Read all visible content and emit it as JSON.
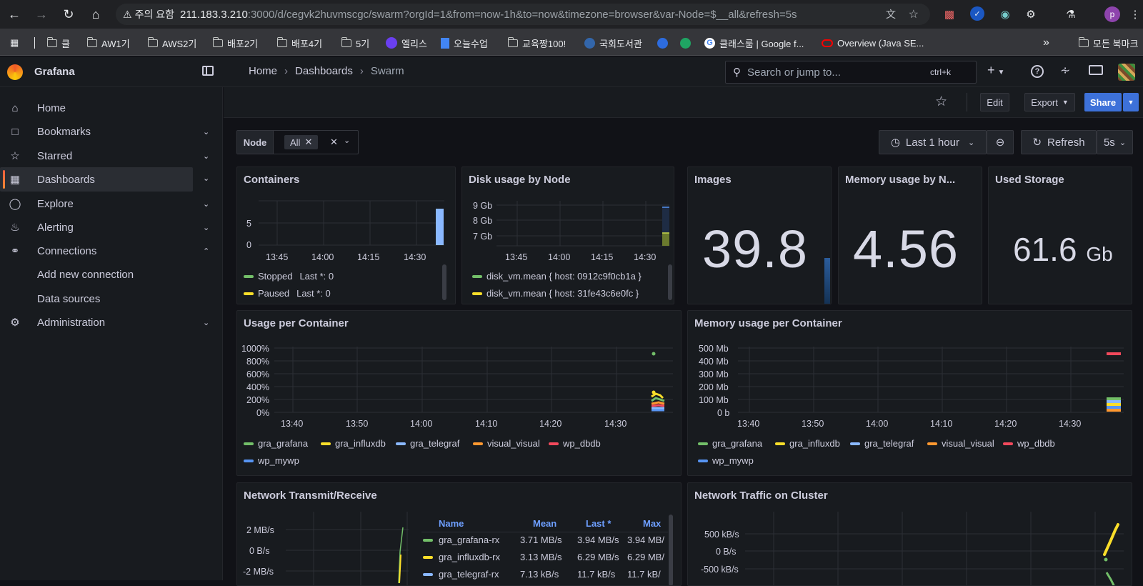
{
  "browser": {
    "warning": "주의 요함",
    "url_host": "211.183.3.210",
    "url_rest": ":3000/d/cegvk2huvmscgc/swarm?orgId=1&from=now-1h&to=now&timezone=browser&var-Node=$__all&refresh=5s",
    "profile_initial": "p",
    "bookmarks": [
      "클",
      "AW1기",
      "AWS2기",
      "배포2기",
      "배포4기",
      "5기",
      "엘리스",
      "오늘수업",
      "교육짱100!",
      "국회도서관",
      "클래스룸 | Google f...",
      "Overview (Java SE..."
    ],
    "more": "»",
    "all_bookmarks": "모든 북마크"
  },
  "app": {
    "name": "Grafana",
    "breadcrumb": [
      "Home",
      "Dashboards",
      "Swarm"
    ],
    "search_placeholder": "Search or jump to...",
    "search_shortcut": "ctrl+k",
    "add": "+"
  },
  "sidebar": {
    "items": [
      {
        "label": "Home",
        "icon": "home-icon"
      },
      {
        "label": "Bookmarks",
        "icon": "bookmark-icon"
      },
      {
        "label": "Starred",
        "icon": "star-icon"
      },
      {
        "label": "Dashboards",
        "icon": "apps-icon"
      },
      {
        "label": "Explore",
        "icon": "compass-icon"
      },
      {
        "label": "Alerting",
        "icon": "bell-icon"
      },
      {
        "label": "Connections",
        "icon": "connections-icon"
      },
      {
        "label": "Add new connection"
      },
      {
        "label": "Data sources"
      },
      {
        "label": "Administration",
        "icon": "cog-icon"
      }
    ]
  },
  "toolbar": {
    "edit": "Edit",
    "export": "Export",
    "share": "Share",
    "time_range": "Last 1 hour",
    "refresh": "Refresh",
    "refresh_interval": "5s"
  },
  "variables": {
    "node_label": "Node",
    "node_value": "All"
  },
  "panels": {
    "containers": {
      "title": "Containers",
      "y_ticks": [
        "5",
        "0"
      ],
      "x_ticks": [
        "13:45",
        "14:00",
        "14:15",
        "14:30"
      ],
      "legend": [
        {
          "name": "Stopped",
          "stat": "Last *: 0",
          "color": "#73bf69"
        },
        {
          "name": "Paused",
          "stat": "Last *: 0",
          "color": "#fade2a"
        }
      ]
    },
    "disk": {
      "title": "Disk usage by Node",
      "y_ticks": [
        "9 Gb",
        "8 Gb",
        "7 Gb"
      ],
      "x_ticks": [
        "13:45",
        "14:00",
        "14:15",
        "14:30"
      ],
      "legend": [
        {
          "name": "disk_vm.mean { host: 0912c9f0cb1a }",
          "color": "#73bf69"
        },
        {
          "name": "disk_vm.mean { host: 31fe43c6e0fc }",
          "color": "#fade2a"
        }
      ]
    },
    "images": {
      "title": "Images",
      "value": "39.8"
    },
    "memory_node": {
      "title": "Memory usage by N...",
      "value": "4.56"
    },
    "storage": {
      "title": "Used Storage",
      "value": "61.6",
      "unit": "Gb"
    },
    "usage_container": {
      "title": "Usage per Container",
      "y_ticks": [
        "1000%",
        "800%",
        "600%",
        "400%",
        "200%",
        "0%"
      ],
      "x_ticks": [
        "13:40",
        "13:50",
        "14:00",
        "14:10",
        "14:20",
        "14:30"
      ],
      "legend": [
        {
          "name": "gra_grafana",
          "color": "#73bf69"
        },
        {
          "name": "gra_influxdb",
          "color": "#fade2a"
        },
        {
          "name": "gra_telegraf",
          "color": "#8ab8ff"
        },
        {
          "name": "visual_visual",
          "color": "#ff9830"
        },
        {
          "name": "wp_dbdb",
          "color": "#f2495c"
        },
        {
          "name": "wp_mywp",
          "color": "#5794f2"
        }
      ]
    },
    "memory_container": {
      "title": "Memory usage per Container",
      "y_ticks": [
        "500 Mb",
        "400 Mb",
        "300 Mb",
        "200 Mb",
        "100 Mb",
        "0 b"
      ],
      "x_ticks": [
        "13:40",
        "13:50",
        "14:00",
        "14:10",
        "14:20",
        "14:30"
      ],
      "legend": [
        {
          "name": "gra_grafana",
          "color": "#73bf69"
        },
        {
          "name": "gra_influxdb",
          "color": "#fade2a"
        },
        {
          "name": "gra_telegraf",
          "color": "#8ab8ff"
        },
        {
          "name": "visual_visual",
          "color": "#ff9830"
        },
        {
          "name": "wp_dbdb",
          "color": "#f2495c"
        },
        {
          "name": "wp_mywp",
          "color": "#5794f2"
        }
      ]
    },
    "network": {
      "title": "Network Transmit/Receive",
      "y_ticks": [
        "2 MB/s",
        "0 B/s",
        "-2 MB/s"
      ],
      "headers": [
        "Name",
        "Mean",
        "Last *",
        "Max"
      ],
      "rows": [
        {
          "name": "gra_grafana-rx",
          "mean": "3.71 MB/s",
          "last": "3.94 MB/s",
          "max": "3.94 MB/",
          "color": "#73bf69"
        },
        {
          "name": "gra_influxdb-rx",
          "mean": "3.13 MB/s",
          "last": "6.29 MB/s",
          "max": "6.29 MB/",
          "color": "#fade2a"
        },
        {
          "name": "gra_telegraf-rx",
          "mean": "7.13 kB/s",
          "last": "11.7 kB/s",
          "max": "11.7 kB/",
          "color": "#8ab8ff"
        }
      ]
    },
    "cluster": {
      "title": "Network Traffic on Cluster",
      "y_ticks": [
        "500 kB/s",
        "0 B/s",
        "-500 kB/s"
      ]
    }
  }
}
